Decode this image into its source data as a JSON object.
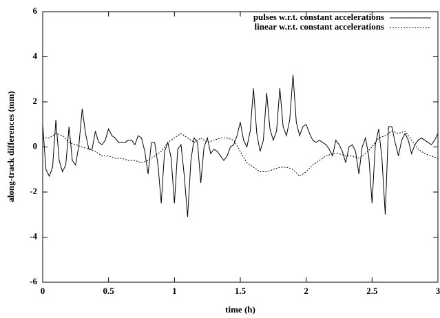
{
  "chart_data": {
    "type": "line",
    "xlabel": "time (h)",
    "ylabel": "along-track differences (mm)",
    "xlim": [
      0,
      3
    ],
    "ylim": [
      -6,
      6
    ],
    "xticks": [
      0,
      0.5,
      1,
      1.5,
      2,
      2.5,
      3
    ],
    "yticks": [
      -6,
      -4,
      -2,
      0,
      2,
      4,
      6
    ],
    "legend": "top-right",
    "series": [
      {
        "name": "pulses w.r.t. constant accelerations",
        "color": "#000000",
        "dash": "solid",
        "x": [
          0,
          0.025,
          0.05,
          0.075,
          0.1,
          0.125,
          0.15,
          0.175,
          0.2,
          0.225,
          0.25,
          0.275,
          0.3,
          0.325,
          0.35,
          0.375,
          0.4,
          0.425,
          0.45,
          0.475,
          0.5,
          0.525,
          0.55,
          0.575,
          0.6,
          0.625,
          0.65,
          0.675,
          0.7,
          0.725,
          0.75,
          0.775,
          0.8,
          0.825,
          0.85,
          0.875,
          0.9,
          0.925,
          0.95,
          0.975,
          1,
          1.025,
          1.05,
          1.075,
          1.1,
          1.125,
          1.15,
          1.175,
          1.2,
          1.225,
          1.25,
          1.275,
          1.3,
          1.325,
          1.35,
          1.375,
          1.4,
          1.425,
          1.45,
          1.475,
          1.5,
          1.525,
          1.55,
          1.575,
          1.6,
          1.625,
          1.65,
          1.675,
          1.7,
          1.725,
          1.75,
          1.775,
          1.8,
          1.825,
          1.85,
          1.875,
          1.9,
          1.925,
          1.95,
          1.975,
          2,
          2.025,
          2.05,
          2.075,
          2.1,
          2.125,
          2.15,
          2.175,
          2.2,
          2.225,
          2.25,
          2.275,
          2.3,
          2.325,
          2.35,
          2.375,
          2.4,
          2.425,
          2.45,
          2.475,
          2.5,
          2.525,
          2.55,
          2.575,
          2.6,
          2.625,
          2.65,
          2.675,
          2.7,
          2.725,
          2.75,
          2.775,
          2.8,
          2.825,
          2.85,
          2.875,
          2.9,
          2.925,
          2.95,
          2.975,
          3
        ],
        "values": [
          1.0,
          -1.0,
          -1.3,
          -0.9,
          1.2,
          -0.6,
          -1.1,
          -0.8,
          0.9,
          -0.6,
          -0.8,
          0.1,
          1.7,
          0.6,
          -0.1,
          -0.1,
          0.7,
          0.2,
          0.1,
          0.3,
          0.8,
          0.5,
          0.4,
          0.2,
          0.2,
          0.2,
          0.3,
          0.3,
          0.1,
          0.5,
          0.4,
          -0.2,
          -1.2,
          0.2,
          0.2,
          -0.8,
          -2.5,
          -0.2,
          0.2,
          -0.5,
          -2.5,
          -0.1,
          0.1,
          -1.3,
          -3.1,
          -0.6,
          0.4,
          0.2,
          -1.6,
          0.0,
          0.4,
          -0.3,
          -0.1,
          -0.2,
          -0.4,
          -0.6,
          -0.4,
          0.0,
          0.1,
          0.5,
          1.1,
          0.3,
          0.0,
          0.7,
          2.6,
          0.6,
          -0.2,
          0.3,
          2.4,
          0.8,
          0.3,
          0.7,
          2.6,
          0.9,
          0.5,
          1.2,
          3.2,
          1.1,
          0.5,
          0.9,
          1.0,
          0.6,
          0.3,
          0.2,
          0.3,
          0.2,
          0.1,
          -0.1,
          -0.4,
          0.3,
          0.1,
          -0.2,
          -0.7,
          0.0,
          0.1,
          -0.2,
          -1.2,
          0.0,
          0.4,
          -0.4,
          -2.5,
          0.1,
          0.8,
          -0.5,
          -3.0,
          0.9,
          0.9,
          0.2,
          -0.4,
          0.3,
          0.6,
          0.3,
          -0.3,
          0.1,
          0.3,
          0.4,
          0.3,
          0.2,
          0.1,
          0.3,
          0.6
        ]
      },
      {
        "name": "linear w.r.t. constant accelerations",
        "color": "#000000",
        "dash": "dotted",
        "x": [
          0,
          0.05,
          0.1,
          0.15,
          0.2,
          0.25,
          0.3,
          0.35,
          0.4,
          0.45,
          0.5,
          0.55,
          0.6,
          0.65,
          0.7,
          0.75,
          0.8,
          0.85,
          0.9,
          0.95,
          1,
          1.05,
          1.1,
          1.15,
          1.2,
          1.25,
          1.3,
          1.35,
          1.4,
          1.45,
          1.5,
          1.55,
          1.6,
          1.65,
          1.7,
          1.75,
          1.8,
          1.85,
          1.9,
          1.95,
          2,
          2.05,
          2.1,
          2.15,
          2.2,
          2.25,
          2.3,
          2.35,
          2.4,
          2.45,
          2.5,
          2.55,
          2.6,
          2.65,
          2.7,
          2.75,
          2.8,
          2.85,
          2.9,
          2.95,
          3
        ],
        "values": [
          0.4,
          0.4,
          0.6,
          0.5,
          0.2,
          0.1,
          0.0,
          -0.1,
          -0.2,
          -0.4,
          -0.4,
          -0.5,
          -0.5,
          -0.6,
          -0.6,
          -0.7,
          -0.6,
          -0.4,
          -0.2,
          0.2,
          0.4,
          0.6,
          0.4,
          0.2,
          0.4,
          0.2,
          0.3,
          0.4,
          0.4,
          0.3,
          -0.2,
          -0.7,
          -0.9,
          -1.1,
          -1.1,
          -1.0,
          -0.9,
          -0.9,
          -1.0,
          -1.3,
          -1.1,
          -0.8,
          -0.6,
          -0.4,
          -0.3,
          -0.3,
          -0.4,
          -0.4,
          -0.5,
          -0.3,
          0.0,
          0.4,
          0.5,
          0.7,
          0.6,
          0.7,
          0.3,
          -0.1,
          -0.3,
          -0.4,
          -0.5
        ]
      }
    ]
  }
}
